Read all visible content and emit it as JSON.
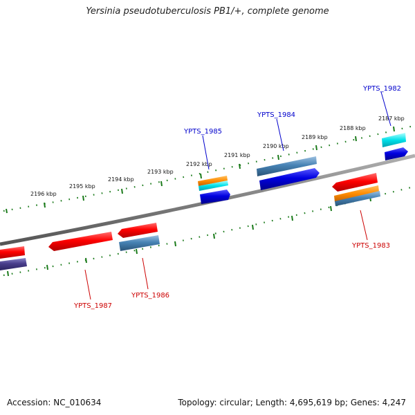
{
  "title": "Yersinia pseudotuberculosis PB1/+, complete genome",
  "footer": {
    "accession": "Accession: NC_010634",
    "summary": "Topology: circular; Length: 4,695,619 bp; Genes: 4,247"
  },
  "scale_labels": [
    "2196 kbp",
    "2195 kbp",
    "2194 kbp",
    "2193 kbp",
    "2192 kbp",
    "2191 kbp",
    "2190 kbp",
    "2189 kbp",
    "2188 kbp",
    "2187 kbp"
  ],
  "genes": {
    "forward": [
      "YPTS_1985",
      "YPTS_1984",
      "YPTS_1982"
    ],
    "reverse": [
      "YPTS_1987",
      "YPTS_1986",
      "YPTS_1983"
    ]
  },
  "colors": {
    "forward_label": "#0000cc",
    "reverse_label": "#cc0000",
    "backbone": "#7a7a7a",
    "ticks": "#1a7a1a"
  }
}
